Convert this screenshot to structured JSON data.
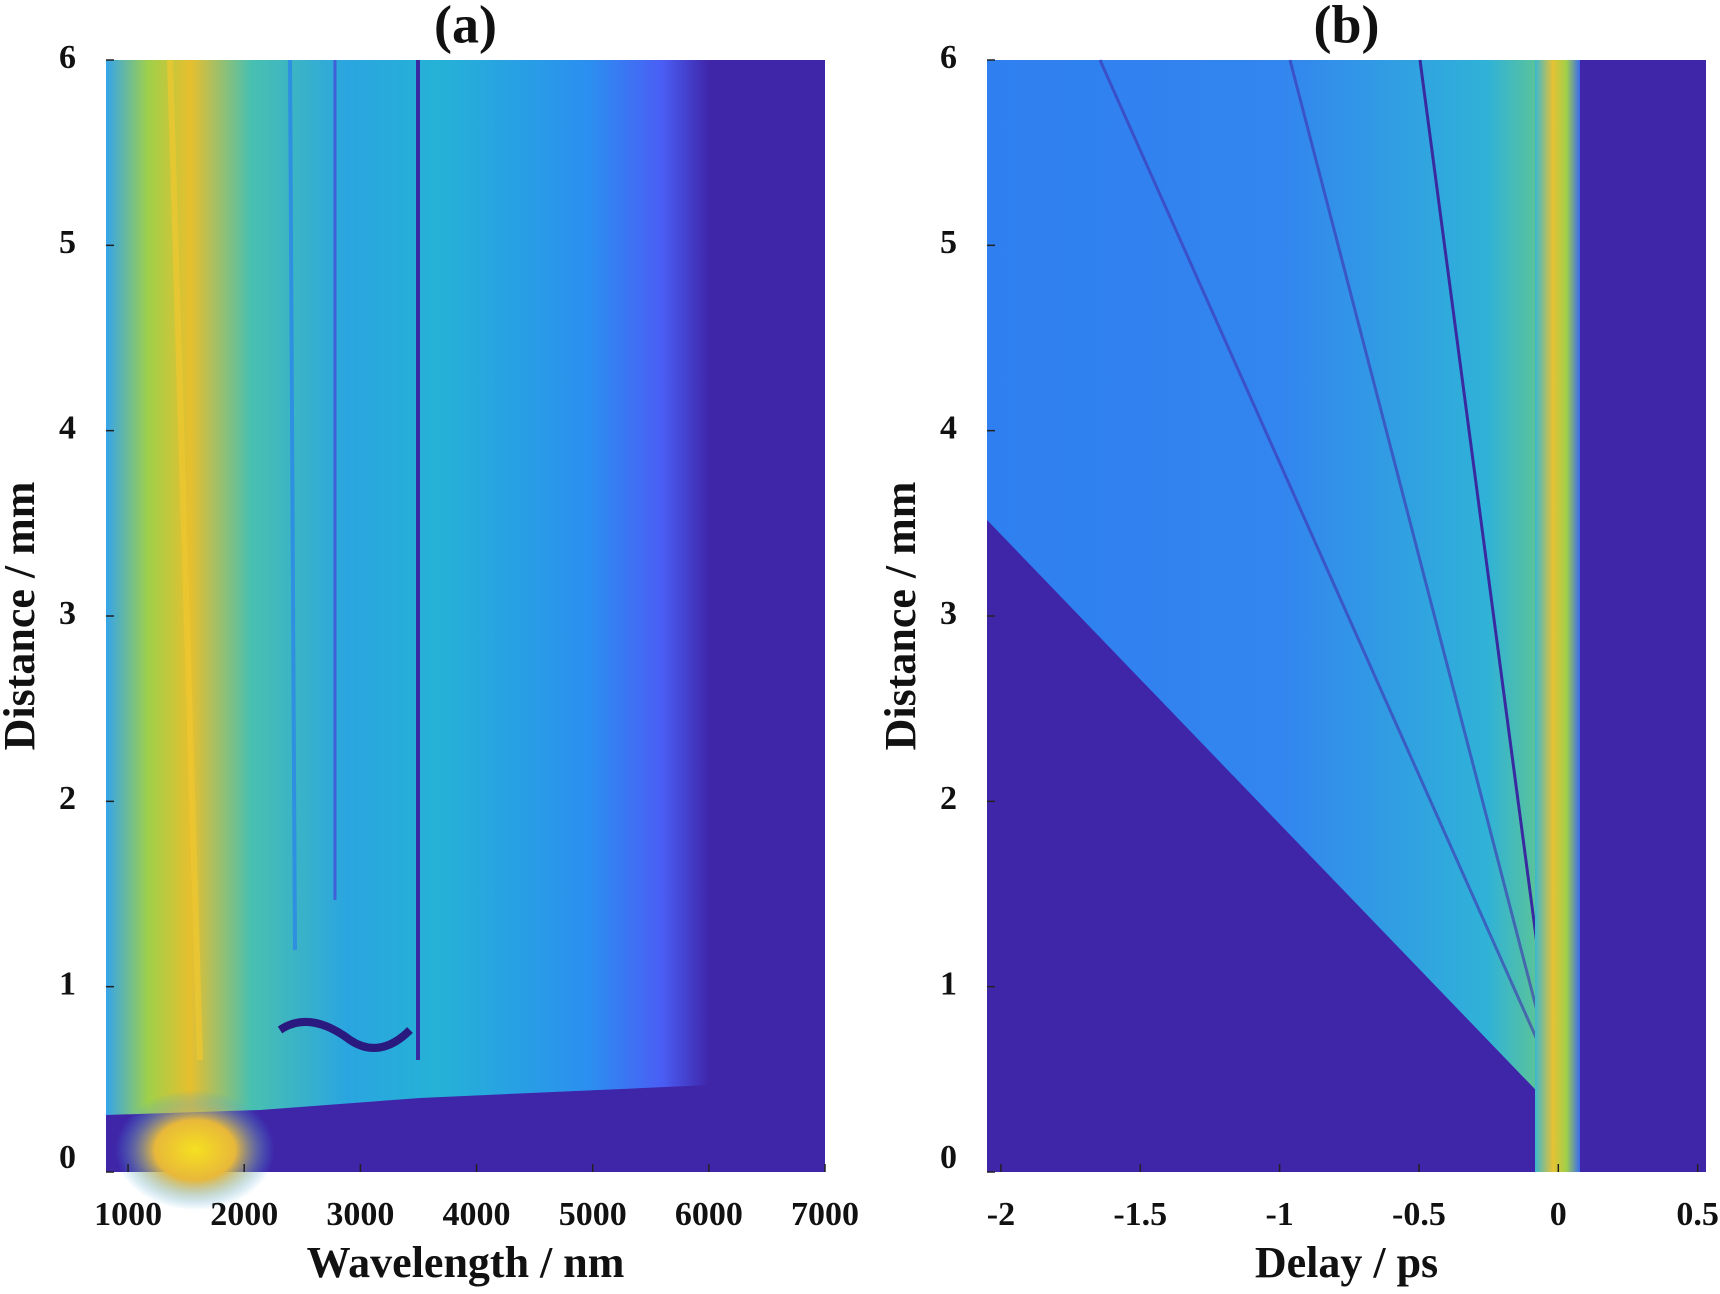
{
  "chart_data": [
    {
      "type": "heatmap",
      "title": "(a)",
      "xlabel": "Wavelength / nm",
      "ylabel": "Distance / mm",
      "xlim": [
        810,
        7000
      ],
      "xticks": [
        1000,
        2000,
        3000,
        4000,
        5000,
        6000,
        7000
      ],
      "ylim": [
        0,
        6
      ],
      "yticks": [
        0,
        1,
        2,
        3,
        4,
        5,
        6
      ]
    },
    {
      "type": "heatmap",
      "title": "(b)",
      "xlabel": "Delay / ps",
      "ylabel": "Distance / mm",
      "xlim": [
        -2.05,
        0.53
      ],
      "xticks": [
        -2,
        -1.5,
        -1,
        -0.5,
        0,
        0.5
      ],
      "ylim": [
        0,
        6
      ],
      "yticks": [
        0,
        1,
        2,
        3,
        4,
        5,
        6
      ]
    }
  ]
}
